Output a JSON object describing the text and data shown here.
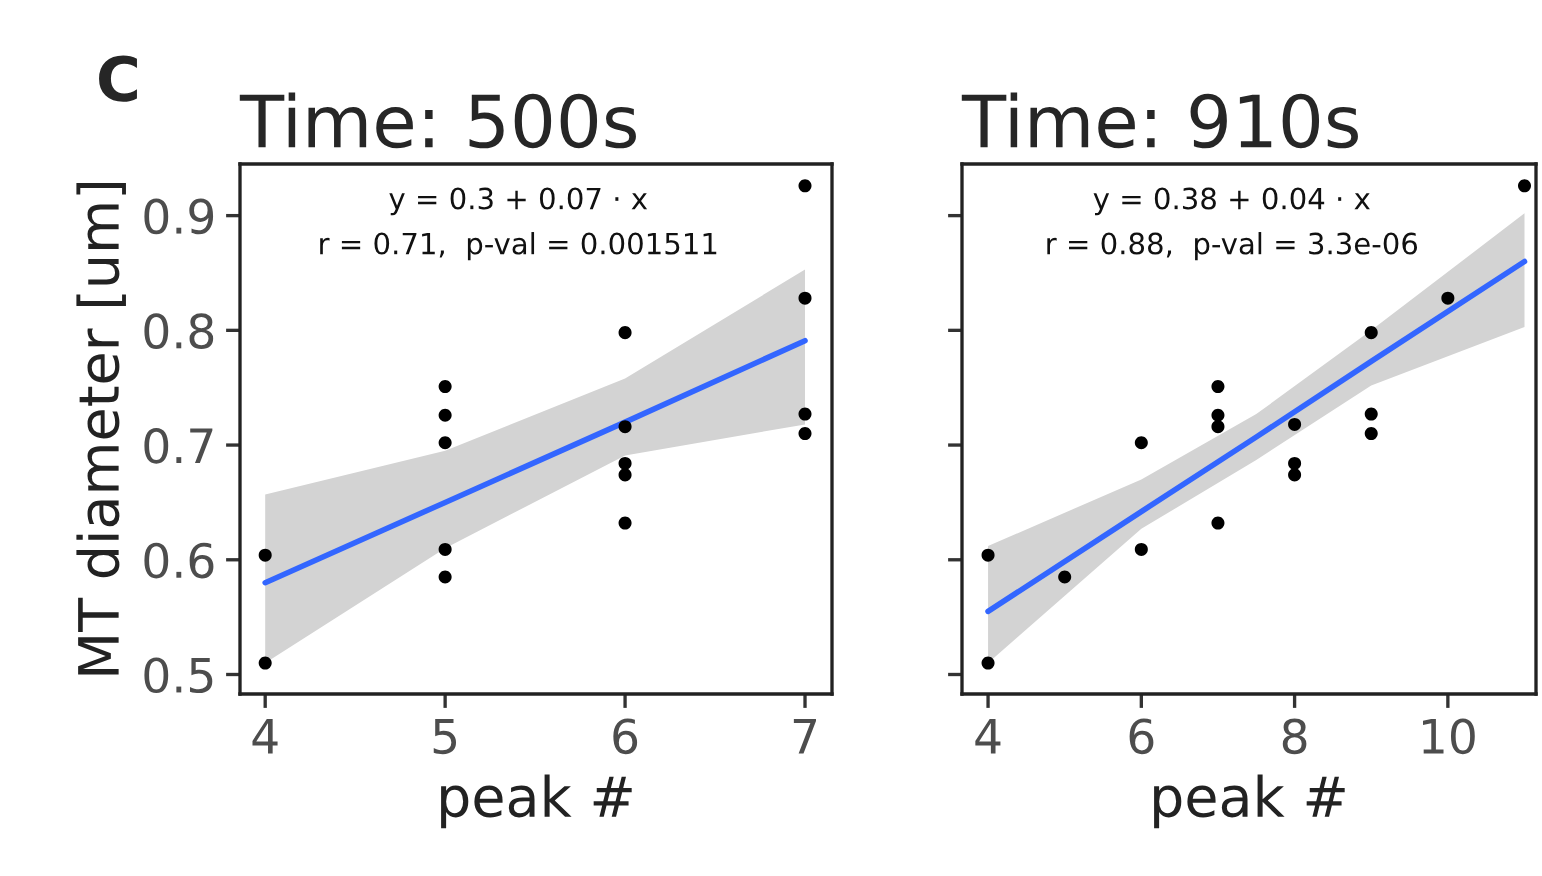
{
  "chart_data": [
    {
      "type": "scatter",
      "title": "Time: 500s",
      "xlabel": "peak #",
      "ylabel": "MT diameter [um]",
      "annotations": [
        "C",
        "y = 0.3 + 0.07 · x",
        "r = 0.71,  p-val = 0.001511"
      ],
      "xlim": [
        3.86,
        7.15
      ],
      "xticks": [
        4,
        5,
        6,
        7
      ],
      "ylim": [
        0.483,
        0.945
      ],
      "yticks": [
        0.5,
        0.6,
        0.7,
        0.8,
        0.9
      ],
      "grid": false,
      "series": [
        {
          "marker": "circle",
          "color": "#000000",
          "x": [
            4,
            4,
            5,
            5,
            5,
            5,
            5,
            6,
            6,
            6,
            6,
            6,
            7,
            7,
            7,
            7
          ],
          "values": [
            0.604,
            0.51,
            0.751,
            0.726,
            0.702,
            0.609,
            0.585,
            0.798,
            0.716,
            0.684,
            0.674,
            0.632,
            0.926,
            0.828,
            0.727,
            0.71
          ]
        },
        {
          "type": "line",
          "marker": "none",
          "color": "#3366ff",
          "x": [
            4,
            5,
            6,
            7
          ],
          "values": [
            0.58,
            0.65,
            0.72,
            0.791
          ],
          "lower": [
            0.51,
            0.61,
            0.691,
            0.718
          ],
          "upper": [
            0.657,
            0.695,
            0.758,
            0.853
          ]
        }
      ]
    },
    {
      "type": "scatter",
      "title": "Time: 910s",
      "xlabel": "peak #",
      "annotations": [
        "y = 0.38 + 0.04 · x",
        "r = 0.88,  p-val = 3.3e-06"
      ],
      "xlim": [
        3.66,
        11.15
      ],
      "xticks": [
        4,
        6,
        8,
        10
      ],
      "ylim": [
        0.483,
        0.945
      ],
      "yticks": [
        0.5,
        0.6,
        0.7,
        0.8,
        0.9
      ],
      "tick_labels": "x",
      "grid": false,
      "series": [
        {
          "marker": "circle",
          "color": "#000000",
          "x": [
            4,
            4,
            5,
            6,
            6,
            7,
            7,
            7,
            7,
            8,
            8,
            8,
            9,
            9,
            9,
            10,
            11
          ],
          "values": [
            0.604,
            0.51,
            0.585,
            0.702,
            0.609,
            0.751,
            0.726,
            0.716,
            0.632,
            0.718,
            0.684,
            0.674,
            0.798,
            0.727,
            0.71,
            0.828,
            0.926
          ]
        },
        {
          "type": "line",
          "marker": "none",
          "color": "#3366ff",
          "x": [
            4,
            6,
            7.5,
            9,
            11
          ],
          "values": [
            0.555,
            0.642,
            0.707,
            0.773,
            0.86
          ],
          "lower": [
            0.51,
            0.627,
            0.687,
            0.752,
            0.803
          ],
          "upper": [
            0.612,
            0.67,
            0.727,
            0.8,
            0.902
          ]
        }
      ]
    }
  ]
}
